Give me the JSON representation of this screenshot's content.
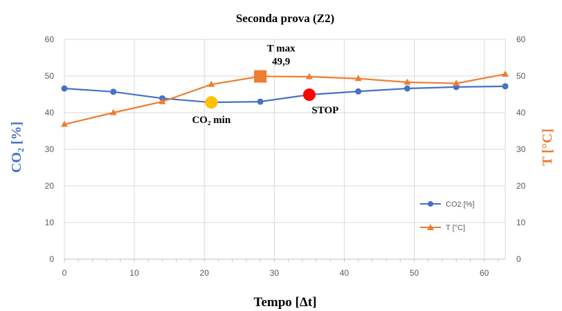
{
  "chart_data": {
    "type": "line",
    "title": "Seconda prova (Z2)",
    "xlabel": "Tempo [Δt]",
    "ylabel_left": "CO₂ [%]",
    "ylabel_right": "T [°C]",
    "xlim": [
      0,
      63
    ],
    "ylim_left": [
      0,
      60
    ],
    "ylim_right": [
      0,
      60
    ],
    "xticks": [
      0,
      10,
      20,
      30,
      40,
      50,
      60
    ],
    "yticks_left": [
      0,
      10,
      20,
      30,
      40,
      50,
      60
    ],
    "yticks_right": [
      0,
      10,
      20,
      30,
      40,
      50,
      60
    ],
    "grid": true,
    "legend_position": "right",
    "series": [
      {
        "name": "CO2 [%]",
        "color": "#4472C4",
        "marker": "circle",
        "axis": "left",
        "x": [
          0,
          7,
          14,
          21,
          28,
          35,
          42,
          49,
          56,
          63
        ],
        "y": [
          46.6,
          45.7,
          43.9,
          42.8,
          43.0,
          44.9,
          45.8,
          46.6,
          47.0,
          47.2
        ]
      },
      {
        "name": "T [°C]",
        "color": "#ED7D31",
        "marker": "triangle",
        "axis": "right",
        "x": [
          0,
          7,
          14,
          21,
          28,
          35,
          42,
          49,
          56,
          63
        ],
        "y": [
          36.8,
          40.0,
          43.0,
          47.7,
          49.9,
          49.8,
          49.3,
          48.3,
          48.0,
          50.5
        ]
      }
    ],
    "annotations": [
      {
        "label": "CO₂ min",
        "x": 21,
        "y": 42.8,
        "marker": "circle",
        "color": "#FFC000"
      },
      {
        "label": "T max",
        "value_label": "49,9",
        "x": 28,
        "y": 49.9,
        "marker": "square",
        "color": "#ED7D31"
      },
      {
        "label": "STOP",
        "x": 35,
        "y": 44.9,
        "marker": "circle",
        "color": "#FF0000"
      }
    ]
  }
}
